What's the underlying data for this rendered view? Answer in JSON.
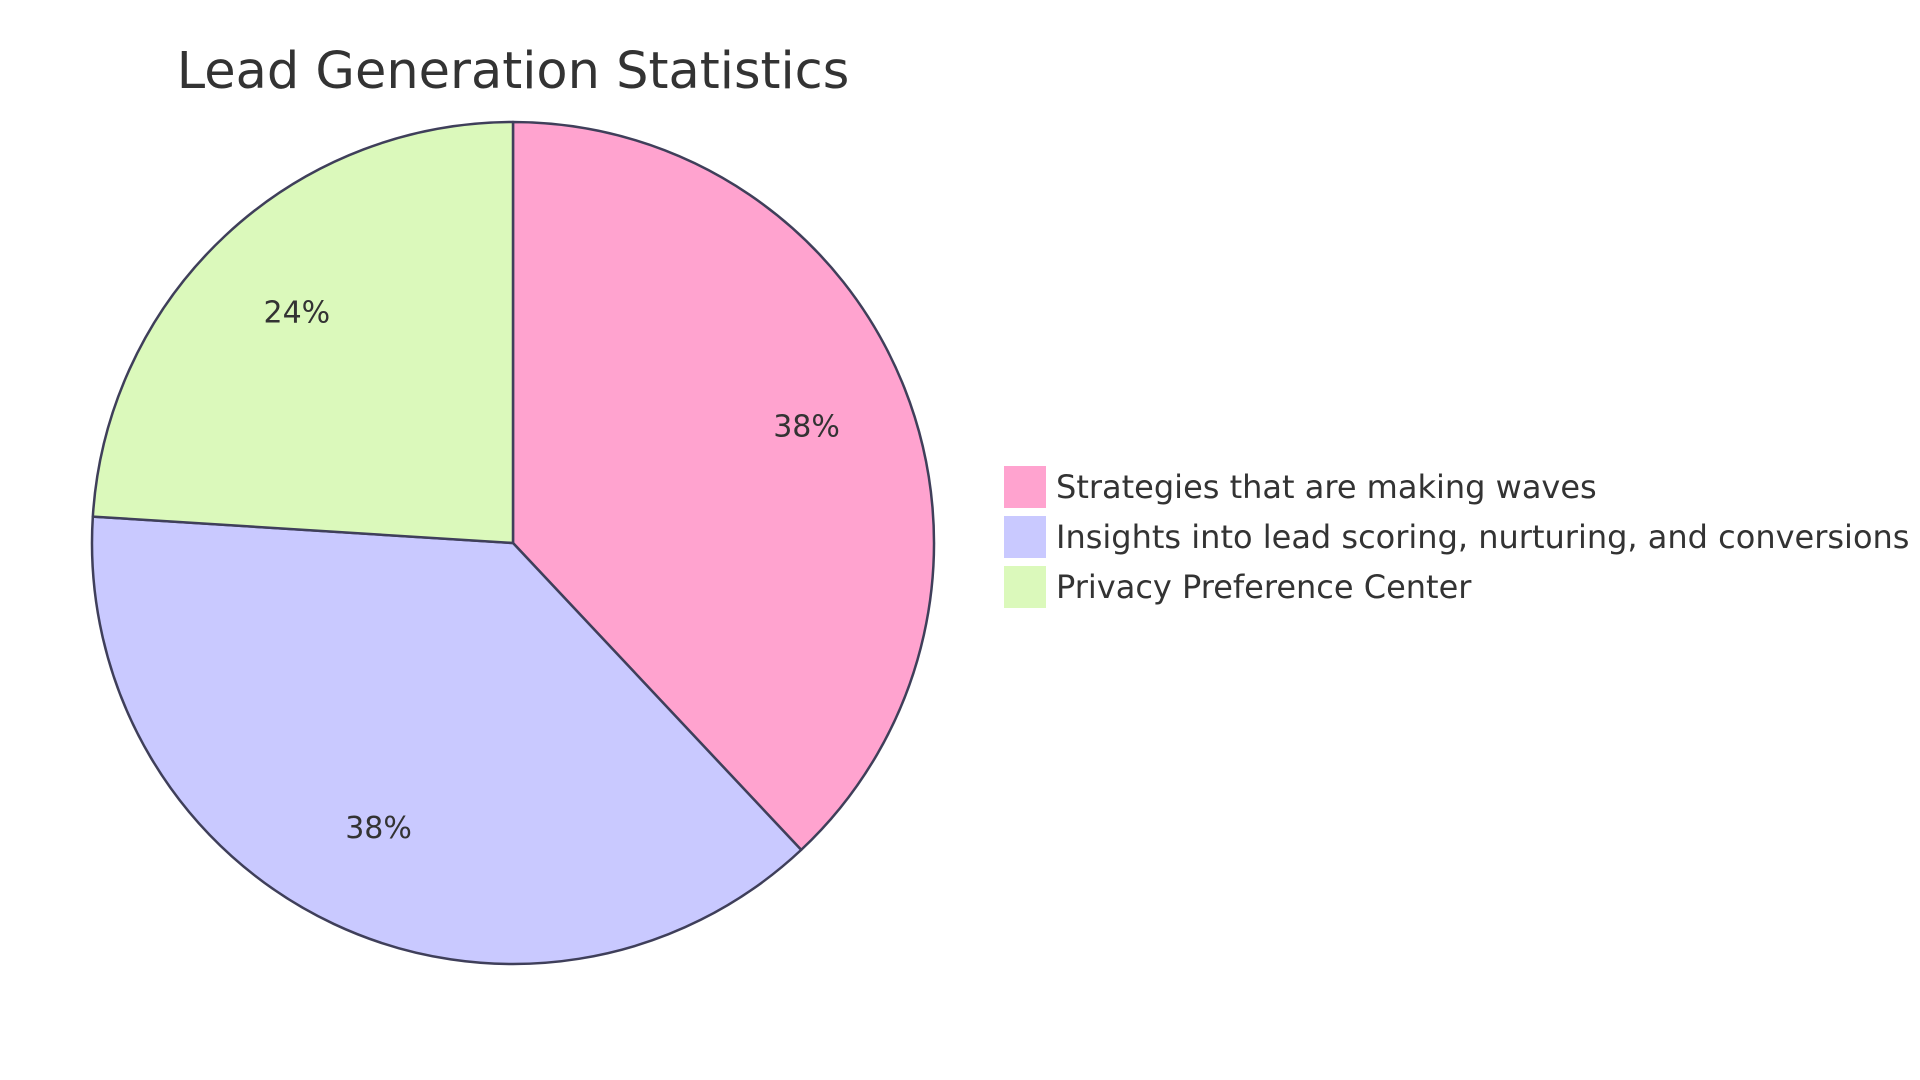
{
  "chart_data": {
    "type": "pie",
    "title": "Lead Generation Statistics",
    "slices": [
      {
        "label": "Strategies that are making waves",
        "value": 38,
        "display": "38%",
        "color": "#ffa3cf"
      },
      {
        "label": "Insights into lead scoring, nurturing, and conversions",
        "value": 38,
        "display": "38%",
        "color": "#c9c9ff"
      },
      {
        "label": "Privacy Preference Center",
        "value": 24,
        "display": "24%",
        "color": "#dbf9bb"
      }
    ],
    "start": "12 o'clock",
    "direction": "clockwise",
    "legend_position": "right"
  }
}
